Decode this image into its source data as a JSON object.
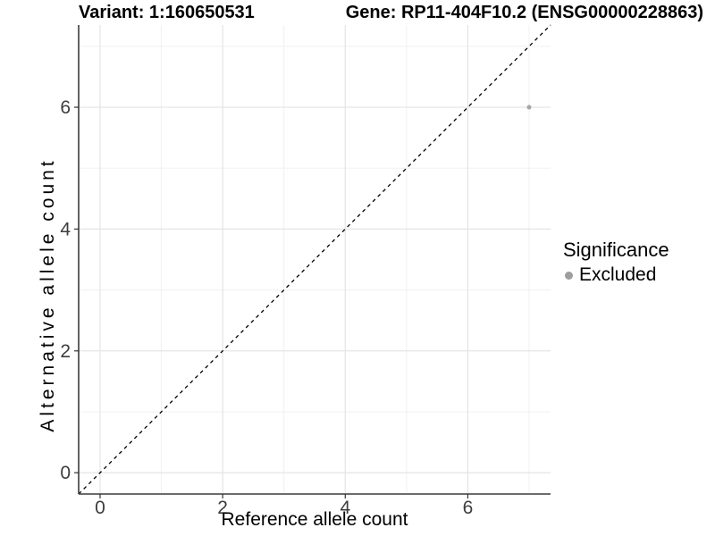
{
  "chart_data": {
    "type": "scatter",
    "title_left": "Variant: 1:160650531",
    "title_right": "Gene: RP11-404F10.2 (ENSG00000228863)",
    "xlabel": "Reference allele count",
    "ylabel": "Alternative allele count",
    "xlim": [
      -0.35,
      7.35
    ],
    "ylim": [
      -0.35,
      7.35
    ],
    "x_ticks": [
      0,
      2,
      4,
      6
    ],
    "y_ticks": [
      0,
      2,
      4,
      6
    ],
    "x_minor_gridlines": [
      1,
      3,
      5,
      7
    ],
    "y_minor_gridlines": [
      1,
      3,
      5,
      7
    ],
    "grid": "major+minor",
    "legend": {
      "title": "Significance",
      "position": "right",
      "entries": [
        {
          "label": "Excluded",
          "color": "#9e9e9e"
        }
      ]
    },
    "series": [
      {
        "name": "Excluded",
        "color": "#a6a6a6",
        "points": [
          {
            "x": 7,
            "y": 6
          }
        ]
      }
    ],
    "reference_line": {
      "type": "identity",
      "equation": "y = x",
      "style": "dashed",
      "color": "#000000"
    },
    "colors": {
      "grid_major": "#e4e4e4",
      "grid_minor": "#f0f0f0",
      "axis_line": "#3c3c3c",
      "tick_mark": "#333333",
      "tick_label": "#3d3d3d"
    }
  }
}
